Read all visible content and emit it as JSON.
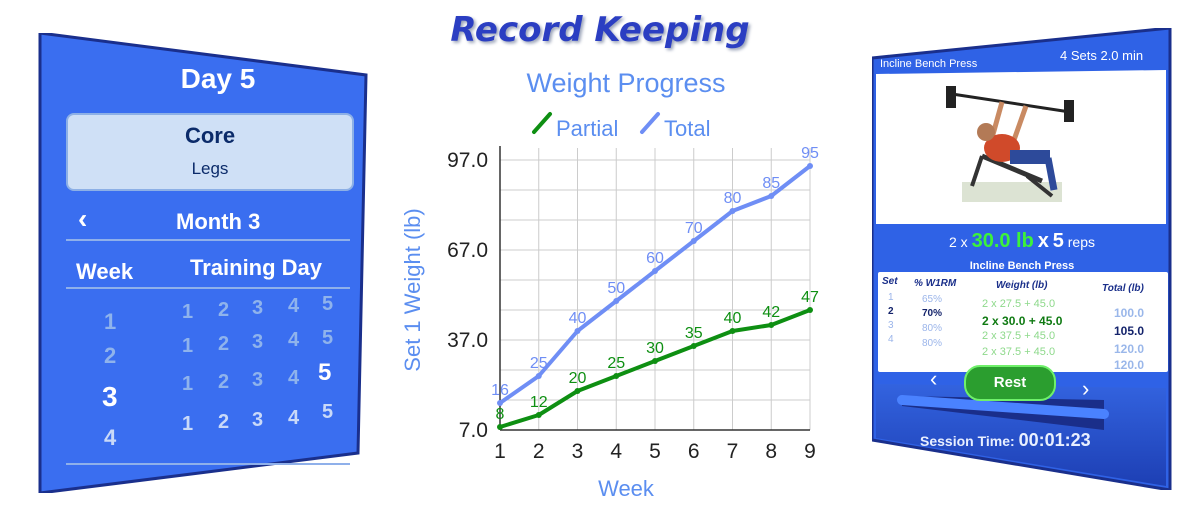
{
  "headline": "Record Keeping",
  "left_panel": {
    "day_title": "Day 5",
    "card_title": "Core",
    "card_subtitle": "Legs",
    "back_glyph": "‹",
    "month_label": "Month 3",
    "week_header": "Week",
    "training_day_header": "Training Day",
    "weeks": [
      "1",
      "2",
      "3",
      "4"
    ],
    "current_week": "3",
    "days_row": [
      "1",
      "2",
      "3",
      "4",
      "5"
    ],
    "current_day": "5"
  },
  "chart": {
    "colors": {
      "partial": "#0e8f12",
      "total": "#6f8ef5",
      "title": "#5b8ef0",
      "grid": "#cccccc"
    }
  },
  "chart_data": {
    "type": "line",
    "title": "Weight Progress",
    "xlabel": "Week",
    "ylabel": "Set 1 Weight (lb)",
    "x": [
      1,
      2,
      3,
      4,
      5,
      6,
      7,
      8,
      9
    ],
    "yticks": [
      "7.0",
      "37.0",
      "67.0",
      "97.0"
    ],
    "ylim": [
      7,
      97
    ],
    "legend_position": "top",
    "grid": true,
    "series": [
      {
        "name": "Partial",
        "values": [
          8,
          12,
          20,
          25,
          30,
          35,
          40,
          42,
          47
        ]
      },
      {
        "name": "Total",
        "values": [
          16,
          25,
          40,
          50,
          60,
          70,
          80,
          85,
          95
        ]
      }
    ]
  },
  "right_panel": {
    "exercise_name": "Incline Bench Press",
    "sets_info": "4 Sets  2.0 min",
    "prescription": {
      "prefix": "2 x",
      "weight": "30.0 lb",
      "times": "x",
      "reps": "5",
      "reps_label": "reps"
    },
    "table_title": "Incline Bench Press",
    "headers": {
      "set": "Set",
      "pct": "% W1RM",
      "weight": "Weight (lb)",
      "total": "Total (lb)"
    },
    "rows": [
      {
        "set": "1",
        "pct": "65%",
        "weight": "2 x 27.5 + 45.0",
        "total": "100.0",
        "active": false
      },
      {
        "set": "2",
        "pct": "70%",
        "weight": "2 x 30.0 + 45.0",
        "total": "105.0",
        "active": true
      },
      {
        "set": "3",
        "pct": "80%",
        "weight": "2 x 37.5 + 45.0",
        "total": "120.0",
        "active": false
      },
      {
        "set": "4",
        "pct": "80%",
        "weight": "2 x 37.5 + 45.0",
        "total": "120.0",
        "active": false
      }
    ],
    "prev_glyph": "‹",
    "rest_label": "Rest",
    "next_glyph": "›",
    "session_label": "Session Time:",
    "session_time": "00:01:23"
  }
}
